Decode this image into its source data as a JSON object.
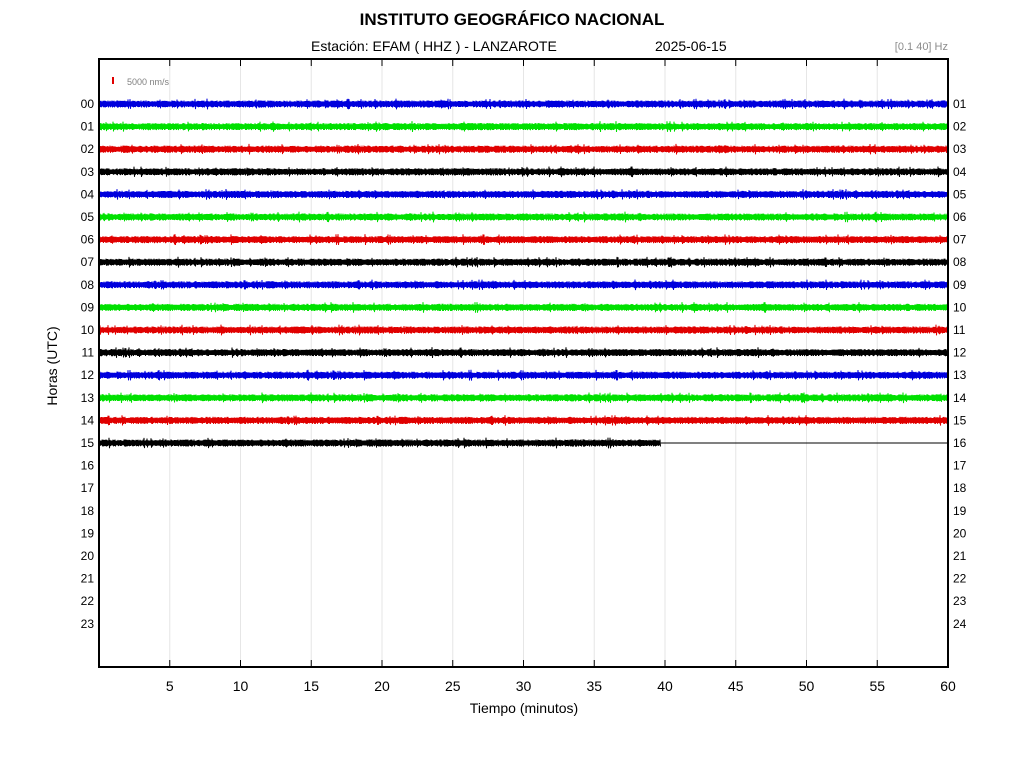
{
  "header": {
    "title": "INSTITUTO GEOGRÁFICO NACIONAL",
    "station": "Estación:  EFAM ( HHZ ) - LANZAROTE",
    "date": "2025-06-15",
    "filter": "[0.1 40] Hz"
  },
  "chart_data": {
    "type": "line",
    "title": "INSTITUTO GEOGRÁFICO NACIONAL",
    "xlabel": "Tiempo (minutos)",
    "ylabel": "Horas (UTC)",
    "xlim": [
      0,
      60
    ],
    "x_ticks": [
      5,
      10,
      15,
      20,
      25,
      30,
      35,
      40,
      45,
      50,
      55,
      60
    ],
    "y_labels_left": [
      "00",
      "01",
      "02",
      "03",
      "04",
      "05",
      "06",
      "07",
      "08",
      "09",
      "10",
      "11",
      "12",
      "13",
      "14",
      "15",
      "16",
      "17",
      "18",
      "19",
      "20",
      "21",
      "22",
      "23"
    ],
    "y_labels_right": [
      "01",
      "02",
      "03",
      "04",
      "05",
      "06",
      "07",
      "08",
      "09",
      "10",
      "11",
      "12",
      "13",
      "14",
      "15",
      "16",
      "17",
      "18",
      "19",
      "20",
      "21",
      "22",
      "23",
      "24"
    ],
    "scale_label": "5000 nm/s",
    "grid": "vertical",
    "series_colors": [
      "#0000dd",
      "#00e000",
      "#e00000",
      "#000000"
    ],
    "traces": [
      {
        "hour": "00",
        "color": "#0000dd",
        "end_minute": 60
      },
      {
        "hour": "01",
        "color": "#00e000",
        "end_minute": 60
      },
      {
        "hour": "02",
        "color": "#e00000",
        "end_minute": 60
      },
      {
        "hour": "03",
        "color": "#000000",
        "end_minute": 60
      },
      {
        "hour": "04",
        "color": "#0000dd",
        "end_minute": 60
      },
      {
        "hour": "05",
        "color": "#00e000",
        "end_minute": 60
      },
      {
        "hour": "06",
        "color": "#e00000",
        "end_minute": 60
      },
      {
        "hour": "07",
        "color": "#000000",
        "end_minute": 60
      },
      {
        "hour": "08",
        "color": "#0000dd",
        "end_minute": 60
      },
      {
        "hour": "09",
        "color": "#00e000",
        "end_minute": 60
      },
      {
        "hour": "10",
        "color": "#e00000",
        "end_minute": 60
      },
      {
        "hour": "11",
        "color": "#000000",
        "end_minute": 60
      },
      {
        "hour": "12",
        "color": "#0000dd",
        "end_minute": 60
      },
      {
        "hour": "13",
        "color": "#00e000",
        "end_minute": 60
      },
      {
        "hour": "14",
        "color": "#e00000",
        "end_minute": 60
      },
      {
        "hour": "15",
        "color": "#000000",
        "end_minute": 39.7
      }
    ]
  }
}
